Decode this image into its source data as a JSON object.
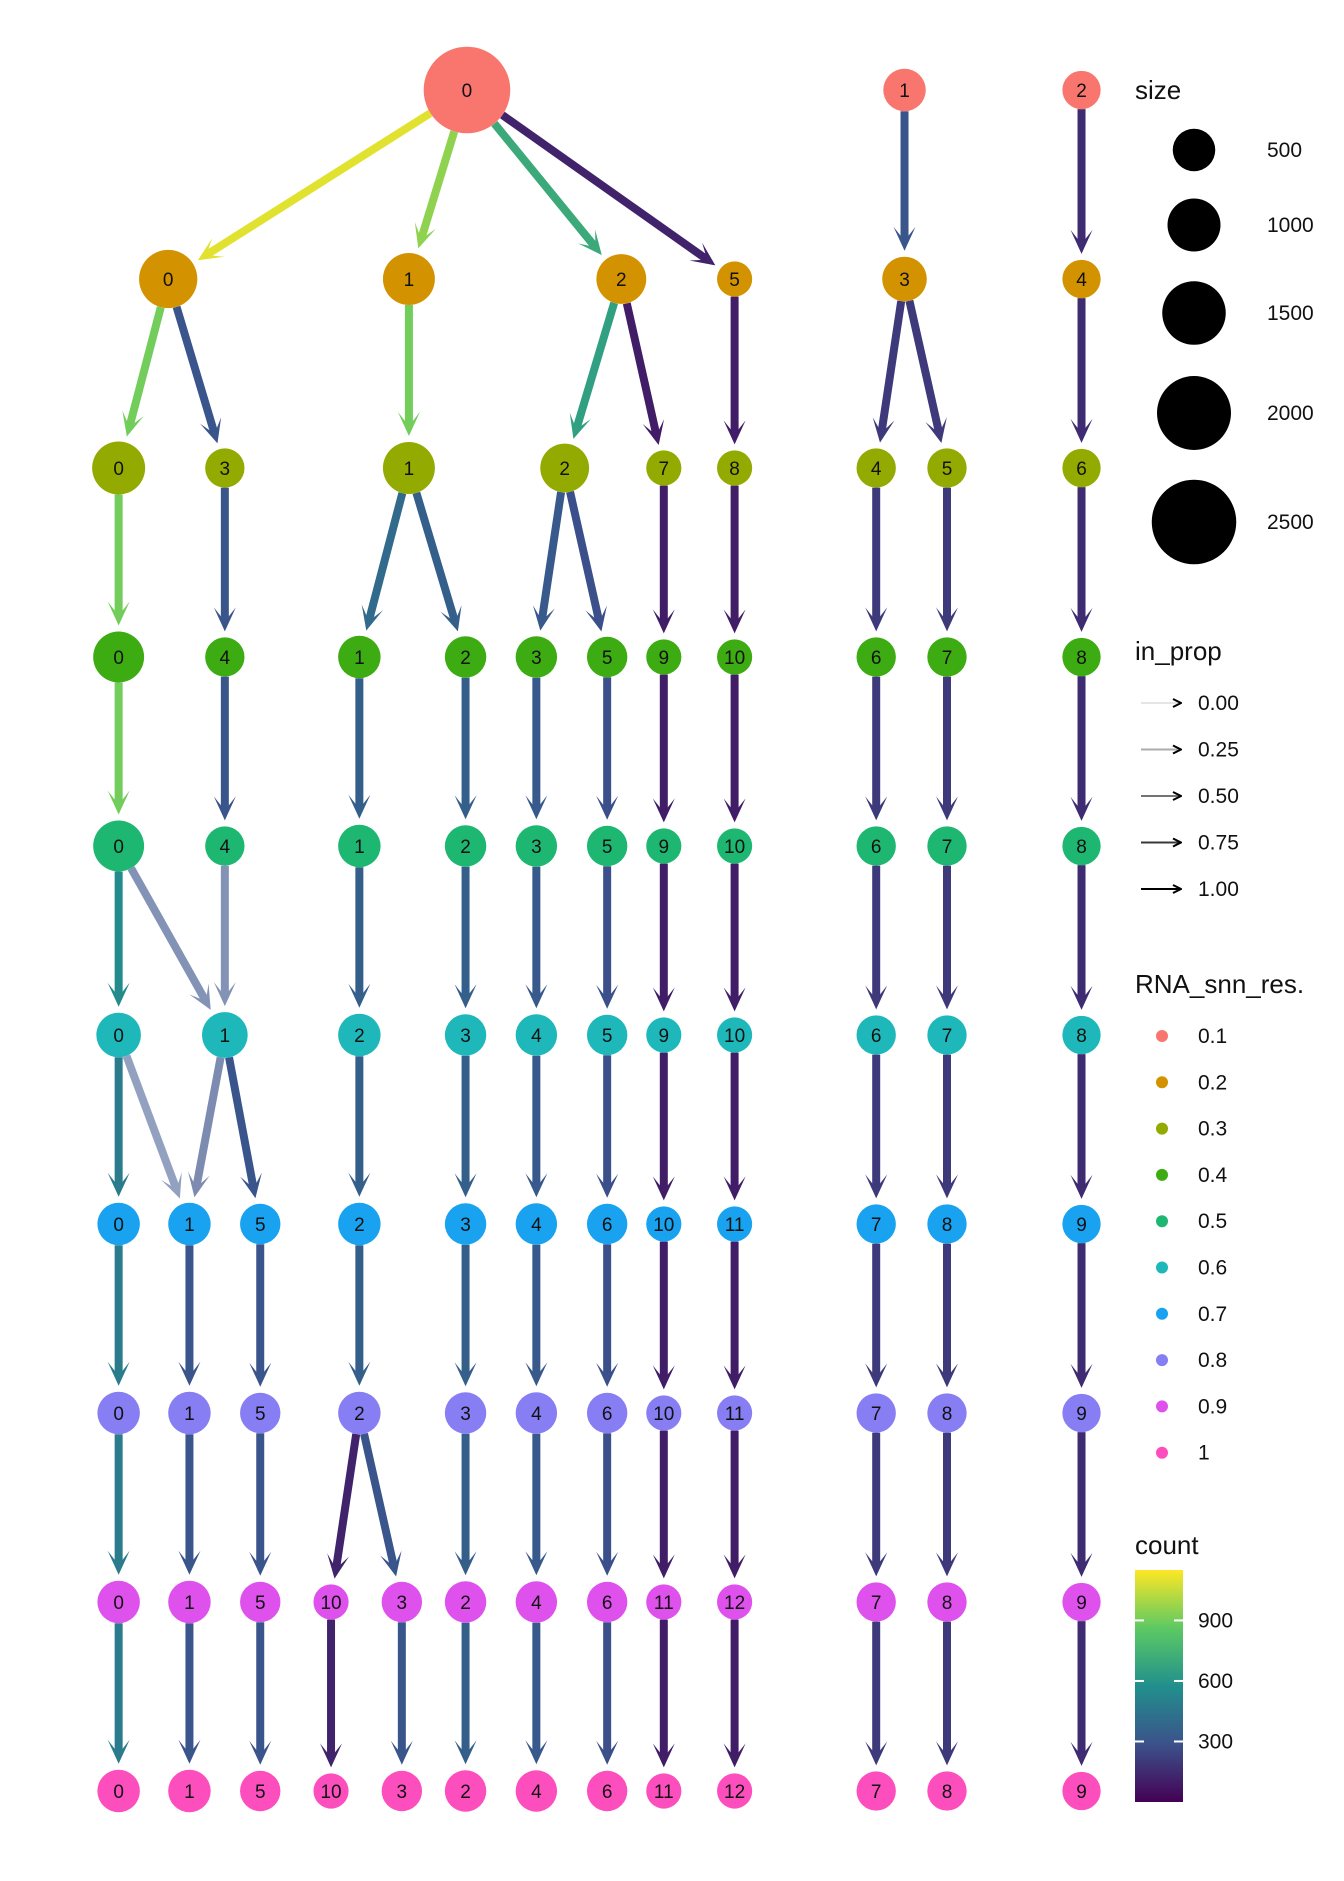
{
  "chart_data": {
    "type": "clustree",
    "resolutions": [
      "0.1",
      "0.2",
      "0.3",
      "0.4",
      "0.5",
      "0.6",
      "0.7",
      "0.8",
      "0.9",
      "1"
    ],
    "level_colors": [
      "#F8766D",
      "#D39200",
      "#93AA00",
      "#3DAB12",
      "#1EB771",
      "#1FB8BA",
      "#18A2F0",
      "#877EF4",
      "#DF51ED",
      "#FD4EBE"
    ],
    "nodes": [
      [
        {
          "id": "0",
          "size": 2600,
          "col": 5.72
        },
        {
          "id": "1",
          "size": 500,
          "col": 11.9
        },
        {
          "id": "2",
          "size": 300,
          "col": 14.4
        }
      ],
      [
        {
          "id": "0",
          "size": 1250,
          "col": 1.5
        },
        {
          "id": "1",
          "size": 950,
          "col": 4.9
        },
        {
          "id": "2",
          "size": 850,
          "col": 7.9
        },
        {
          "id": "5",
          "size": 150,
          "col": 9.5
        },
        {
          "id": "3",
          "size": 600,
          "col": 11.9
        },
        {
          "id": "4",
          "size": 300,
          "col": 14.4
        }
      ],
      [
        {
          "id": "0",
          "size": 1000,
          "col": 0.8
        },
        {
          "id": "3",
          "size": 350,
          "col": 2.3
        },
        {
          "id": "1",
          "size": 950,
          "col": 4.9
        },
        {
          "id": "2",
          "size": 800,
          "col": 7.1
        },
        {
          "id": "7",
          "size": 150,
          "col": 8.5
        },
        {
          "id": "8",
          "size": 150,
          "col": 9.5
        },
        {
          "id": "4",
          "size": 350,
          "col": 11.5
        },
        {
          "id": "5",
          "size": 350,
          "col": 12.5
        },
        {
          "id": "6",
          "size": 300,
          "col": 14.4
        }
      ],
      [
        {
          "id": "0",
          "size": 900,
          "col": 0.8
        },
        {
          "id": "4",
          "size": 350,
          "col": 2.3
        },
        {
          "id": "1",
          "size": 500,
          "col": 4.2
        },
        {
          "id": "2",
          "size": 450,
          "col": 5.7
        },
        {
          "id": "3",
          "size": 450,
          "col": 6.7
        },
        {
          "id": "5",
          "size": 400,
          "col": 7.7
        },
        {
          "id": "9",
          "size": 150,
          "col": 8.5
        },
        {
          "id": "10",
          "size": 150,
          "col": 9.5
        },
        {
          "id": "6",
          "size": 350,
          "col": 11.5
        },
        {
          "id": "7",
          "size": 350,
          "col": 12.5
        },
        {
          "id": "8",
          "size": 300,
          "col": 14.4
        }
      ],
      [
        {
          "id": "0",
          "size": 900,
          "col": 0.8
        },
        {
          "id": "4",
          "size": 350,
          "col": 2.3
        },
        {
          "id": "1",
          "size": 500,
          "col": 4.2
        },
        {
          "id": "2",
          "size": 450,
          "col": 5.7
        },
        {
          "id": "3",
          "size": 450,
          "col": 6.7
        },
        {
          "id": "5",
          "size": 400,
          "col": 7.7
        },
        {
          "id": "9",
          "size": 150,
          "col": 8.5
        },
        {
          "id": "10",
          "size": 150,
          "col": 9.5
        },
        {
          "id": "6",
          "size": 350,
          "col": 11.5
        },
        {
          "id": "7",
          "size": 350,
          "col": 12.5
        },
        {
          "id": "8",
          "size": 300,
          "col": 14.4
        }
      ],
      [
        {
          "id": "0",
          "size": 600,
          "col": 0.8
        },
        {
          "id": "1",
          "size": 650,
          "col": 2.3
        },
        {
          "id": "2",
          "size": 500,
          "col": 4.2
        },
        {
          "id": "3",
          "size": 450,
          "col": 5.7
        },
        {
          "id": "4",
          "size": 450,
          "col": 6.7
        },
        {
          "id": "5",
          "size": 400,
          "col": 7.7
        },
        {
          "id": "9",
          "size": 150,
          "col": 8.5
        },
        {
          "id": "10",
          "size": 150,
          "col": 9.5
        },
        {
          "id": "6",
          "size": 350,
          "col": 11.5
        },
        {
          "id": "7",
          "size": 350,
          "col": 12.5
        },
        {
          "id": "8",
          "size": 300,
          "col": 14.4
        }
      ],
      [
        {
          "id": "0",
          "size": 500,
          "col": 0.8
        },
        {
          "id": "1",
          "size": 500,
          "col": 1.8
        },
        {
          "id": "5",
          "size": 400,
          "col": 2.8
        },
        {
          "id": "2",
          "size": 500,
          "col": 4.2
        },
        {
          "id": "3",
          "size": 450,
          "col": 5.7
        },
        {
          "id": "4",
          "size": 450,
          "col": 6.7
        },
        {
          "id": "6",
          "size": 400,
          "col": 7.7
        },
        {
          "id": "10",
          "size": 150,
          "col": 8.5
        },
        {
          "id": "11",
          "size": 150,
          "col": 9.5
        },
        {
          "id": "7",
          "size": 350,
          "col": 11.5
        },
        {
          "id": "8",
          "size": 350,
          "col": 12.5
        },
        {
          "id": "9",
          "size": 300,
          "col": 14.4
        }
      ],
      [
        {
          "id": "0",
          "size": 500,
          "col": 0.8
        },
        {
          "id": "1",
          "size": 500,
          "col": 1.8
        },
        {
          "id": "5",
          "size": 400,
          "col": 2.8
        },
        {
          "id": "2",
          "size": 500,
          "col": 4.2
        },
        {
          "id": "3",
          "size": 450,
          "col": 5.7
        },
        {
          "id": "4",
          "size": 450,
          "col": 6.7
        },
        {
          "id": "6",
          "size": 400,
          "col": 7.7
        },
        {
          "id": "10",
          "size": 150,
          "col": 8.5
        },
        {
          "id": "11",
          "size": 150,
          "col": 9.5
        },
        {
          "id": "7",
          "size": 350,
          "col": 11.5
        },
        {
          "id": "8",
          "size": 350,
          "col": 12.5
        },
        {
          "id": "9",
          "size": 300,
          "col": 14.4
        }
      ],
      [
        {
          "id": "0",
          "size": 500,
          "col": 0.8
        },
        {
          "id": "1",
          "size": 500,
          "col": 1.8
        },
        {
          "id": "5",
          "size": 400,
          "col": 2.8
        },
        {
          "id": "10",
          "size": 150,
          "col": 3.8
        },
        {
          "id": "3",
          "size": 400,
          "col": 4.8
        },
        {
          "id": "2",
          "size": 450,
          "col": 5.7
        },
        {
          "id": "4",
          "size": 450,
          "col": 6.7
        },
        {
          "id": "6",
          "size": 400,
          "col": 7.7
        },
        {
          "id": "11",
          "size": 150,
          "col": 8.5
        },
        {
          "id": "12",
          "size": 150,
          "col": 9.5
        },
        {
          "id": "7",
          "size": 350,
          "col": 11.5
        },
        {
          "id": "8",
          "size": 350,
          "col": 12.5
        },
        {
          "id": "9",
          "size": 300,
          "col": 14.4
        }
      ],
      [
        {
          "id": "0",
          "size": 500,
          "col": 0.8
        },
        {
          "id": "1",
          "size": 500,
          "col": 1.8
        },
        {
          "id": "5",
          "size": 400,
          "col": 2.8
        },
        {
          "id": "10",
          "size": 150,
          "col": 3.8
        },
        {
          "id": "3",
          "size": 400,
          "col": 4.8
        },
        {
          "id": "2",
          "size": 450,
          "col": 5.7
        },
        {
          "id": "4",
          "size": 450,
          "col": 6.7
        },
        {
          "id": "6",
          "size": 400,
          "col": 7.7
        },
        {
          "id": "11",
          "size": 150,
          "col": 8.5
        },
        {
          "id": "12",
          "size": 150,
          "col": 9.5
        },
        {
          "id": "7",
          "size": 350,
          "col": 11.5
        },
        {
          "id": "8",
          "size": 350,
          "col": 12.5
        },
        {
          "id": "9",
          "size": 300,
          "col": 14.4
        }
      ]
    ],
    "edges": [
      [
        [
          0,
          0,
          1100,
          1.0
        ],
        [
          0,
          1,
          950,
          1.0
        ],
        [
          0,
          2,
          700,
          1.0
        ],
        [
          0,
          3,
          120,
          1.0
        ],
        [
          1,
          4,
          300,
          1.0
        ],
        [
          2,
          5,
          150,
          1.0
        ]
      ],
      [
        [
          0,
          0,
          900,
          1.0
        ],
        [
          0,
          1,
          300,
          1.0
        ],
        [
          1,
          2,
          900,
          1.0
        ],
        [
          2,
          3,
          650,
          1.0
        ],
        [
          2,
          4,
          100,
          1.0
        ],
        [
          3,
          5,
          100,
          1.0
        ],
        [
          4,
          6,
          200,
          1.0
        ],
        [
          4,
          7,
          200,
          1.0
        ],
        [
          5,
          8,
          150,
          1.0
        ]
      ],
      [
        [
          0,
          0,
          900,
          1.0
        ],
        [
          1,
          1,
          300,
          1.0
        ],
        [
          2,
          2,
          400,
          1.0
        ],
        [
          2,
          3,
          350,
          1.0
        ],
        [
          3,
          4,
          320,
          1.0
        ],
        [
          3,
          5,
          280,
          1.0
        ],
        [
          4,
          6,
          100,
          1.0
        ],
        [
          5,
          7,
          100,
          1.0
        ],
        [
          6,
          8,
          200,
          1.0
        ],
        [
          7,
          9,
          200,
          1.0
        ],
        [
          8,
          10,
          150,
          1.0
        ]
      ],
      [
        [
          0,
          0,
          900,
          1.0
        ],
        [
          1,
          1,
          300,
          1.0
        ],
        [
          2,
          2,
          350,
          1.0
        ],
        [
          3,
          3,
          350,
          1.0
        ],
        [
          4,
          4,
          320,
          1.0
        ],
        [
          5,
          5,
          280,
          1.0
        ],
        [
          6,
          6,
          100,
          1.0
        ],
        [
          7,
          7,
          100,
          1.0
        ],
        [
          8,
          8,
          200,
          1.0
        ],
        [
          9,
          9,
          200,
          1.0
        ],
        [
          10,
          10,
          150,
          1.0
        ]
      ],
      [
        [
          0,
          0,
          550,
          1.0
        ],
        [
          0,
          1,
          300,
          0.5
        ],
        [
          1,
          1,
          300,
          0.5
        ],
        [
          2,
          2,
          350,
          1.0
        ],
        [
          3,
          3,
          350,
          1.0
        ],
        [
          4,
          4,
          320,
          1.0
        ],
        [
          5,
          5,
          280,
          1.0
        ],
        [
          6,
          6,
          100,
          1.0
        ],
        [
          7,
          7,
          100,
          1.0
        ],
        [
          8,
          8,
          200,
          1.0
        ],
        [
          9,
          9,
          200,
          1.0
        ],
        [
          10,
          10,
          150,
          1.0
        ]
      ],
      [
        [
          0,
          0,
          480,
          1.0
        ],
        [
          0,
          1,
          300,
          0.4
        ],
        [
          1,
          1,
          280,
          0.55
        ],
        [
          1,
          2,
          300,
          1.0
        ],
        [
          2,
          3,
          350,
          1.0
        ],
        [
          3,
          4,
          350,
          1.0
        ],
        [
          4,
          5,
          320,
          1.0
        ],
        [
          5,
          6,
          280,
          1.0
        ],
        [
          6,
          7,
          100,
          1.0
        ],
        [
          7,
          8,
          100,
          1.0
        ],
        [
          8,
          9,
          200,
          1.0
        ],
        [
          9,
          10,
          200,
          1.0
        ],
        [
          10,
          11,
          150,
          1.0
        ]
      ],
      [
        [
          0,
          0,
          480,
          1.0
        ],
        [
          1,
          1,
          300,
          1.0
        ],
        [
          2,
          2,
          300,
          1.0
        ],
        [
          3,
          3,
          350,
          1.0
        ],
        [
          4,
          4,
          350,
          1.0
        ],
        [
          5,
          5,
          320,
          1.0
        ],
        [
          6,
          6,
          280,
          1.0
        ],
        [
          7,
          7,
          100,
          1.0
        ],
        [
          8,
          8,
          100,
          1.0
        ],
        [
          9,
          9,
          200,
          1.0
        ],
        [
          10,
          10,
          200,
          1.0
        ],
        [
          11,
          11,
          150,
          1.0
        ]
      ],
      [
        [
          0,
          0,
          480,
          1.0
        ],
        [
          1,
          1,
          300,
          1.0
        ],
        [
          2,
          2,
          300,
          1.0
        ],
        [
          3,
          3,
          120,
          1.0
        ],
        [
          3,
          4,
          300,
          1.0
        ],
        [
          4,
          5,
          350,
          1.0
        ],
        [
          5,
          6,
          320,
          1.0
        ],
        [
          6,
          7,
          280,
          1.0
        ],
        [
          7,
          8,
          100,
          1.0
        ],
        [
          8,
          9,
          100,
          1.0
        ],
        [
          9,
          10,
          200,
          1.0
        ],
        [
          10,
          11,
          200,
          1.0
        ],
        [
          11,
          12,
          150,
          1.0
        ]
      ],
      [
        [
          0,
          0,
          480,
          1.0
        ],
        [
          1,
          1,
          300,
          1.0
        ],
        [
          2,
          2,
          300,
          1.0
        ],
        [
          3,
          3,
          120,
          1.0
        ],
        [
          4,
          4,
          300,
          1.0
        ],
        [
          5,
          5,
          350,
          1.0
        ],
        [
          6,
          6,
          320,
          1.0
        ],
        [
          7,
          7,
          280,
          1.0
        ],
        [
          8,
          8,
          100,
          1.0
        ],
        [
          9,
          9,
          100,
          1.0
        ],
        [
          10,
          10,
          200,
          1.0
        ],
        [
          11,
          11,
          200,
          1.0
        ],
        [
          12,
          12,
          150,
          1.0
        ]
      ]
    ],
    "legend": {
      "size": {
        "title": "size",
        "values": [
          500,
          1000,
          1500,
          2000,
          2500
        ]
      },
      "in_prop": {
        "title": "in_prop",
        "values": [
          "0.00",
          "0.25",
          "0.50",
          "0.75",
          "1.00"
        ]
      },
      "level": {
        "title": "RNA_snn_res.",
        "values": [
          "0.1",
          "0.2",
          "0.3",
          "0.4",
          "0.5",
          "0.6",
          "0.7",
          "0.8",
          "0.9",
          "1"
        ]
      },
      "count": {
        "title": "count",
        "ticks": [
          900,
          600,
          300
        ],
        "range": [
          0,
          1150
        ]
      }
    }
  }
}
